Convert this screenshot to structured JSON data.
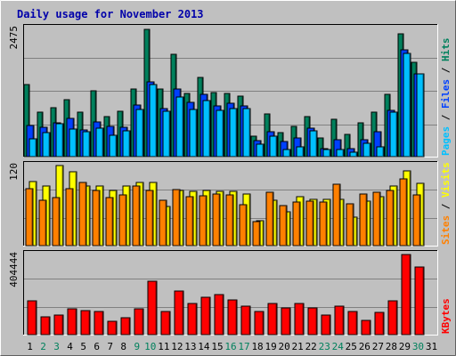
{
  "title": "Daily usage for November 2013",
  "colors": {
    "background": "#c0c0c0",
    "plot": "#c0c0c0",
    "title": "#0000aa",
    "hits": "#00805c",
    "files": "#0040ff",
    "pages": "#00c0ff",
    "visits": "#ffff00",
    "sites": "#ff8000",
    "kbytes": "#ff0000",
    "weekend_label": "#00805c",
    "weekday_label": "#000000"
  },
  "chart_data": [
    {
      "type": "bar",
      "name": "hits-files-pages",
      "scale_label": "2475",
      "ylim": [
        0,
        2475
      ],
      "legend": [
        {
          "text": "Pages",
          "color": "#00c0ff"
        },
        {
          "text": "Files",
          "color": "#0040ff"
        },
        {
          "text": "Hits",
          "color": "#00805c"
        }
      ],
      "categories": [
        "1",
        "2",
        "3",
        "4",
        "5",
        "6",
        "7",
        "8",
        "9",
        "10",
        "11",
        "12",
        "13",
        "14",
        "15",
        "16",
        "17",
        "18",
        "19",
        "20",
        "21",
        "22",
        "23",
        "24",
        "25",
        "26",
        "27",
        "28",
        "29",
        "30",
        "31"
      ],
      "series": [
        {
          "name": "Hits",
          "values": [
            1380,
            840,
            940,
            1090,
            840,
            1250,
            770,
            860,
            1290,
            2420,
            1280,
            1950,
            1210,
            1510,
            1220,
            1200,
            1160,
            390,
            820,
            450,
            580,
            770,
            360,
            720,
            420,
            650,
            840,
            1190,
            2340,
            1800,
            0
          ]
        },
        {
          "name": "Files",
          "values": [
            590,
            560,
            640,
            730,
            510,
            660,
            570,
            560,
            980,
            1420,
            920,
            1280,
            1030,
            1190,
            960,
            1020,
            970,
            300,
            480,
            290,
            360,
            550,
            160,
            320,
            160,
            330,
            480,
            880,
            2040,
            1580,
            0
          ]
        },
        {
          "name": "Pages",
          "values": [
            340,
            450,
            620,
            530,
            470,
            550,
            410,
            500,
            900,
            1370,
            860,
            1140,
            890,
            1070,
            880,
            910,
            910,
            230,
            390,
            140,
            180,
            490,
            130,
            130,
            80,
            260,
            180,
            850,
            1970,
            1580,
            0
          ]
        }
      ]
    },
    {
      "type": "bar",
      "name": "visits-sites",
      "scale_label": "120",
      "ylim": [
        0,
        120
      ],
      "legend": [
        {
          "text": "Sites",
          "color": "#ff8000"
        },
        {
          "text": "Visits",
          "color": "#ffff00"
        }
      ],
      "categories": [
        "1",
        "2",
        "3",
        "4",
        "5",
        "6",
        "7",
        "8",
        "9",
        "10",
        "11",
        "12",
        "13",
        "14",
        "15",
        "16",
        "17",
        "18",
        "19",
        "20",
        "21",
        "22",
        "23",
        "24",
        "25",
        "26",
        "27",
        "28",
        "29",
        "30",
        "31"
      ],
      "series": [
        {
          "name": "Visits",
          "values": [
            94,
            88,
            117,
            108,
            88,
            88,
            81,
            88,
            92,
            92,
            58,
            81,
            79,
            81,
            79,
            79,
            76,
            37,
            67,
            49,
            72,
            68,
            68,
            68,
            42,
            65,
            72,
            88,
            110,
            91,
            0
          ]
        },
        {
          "name": "Sites",
          "values": [
            84,
            66,
            71,
            83,
            92,
            81,
            70,
            74,
            87,
            81,
            66,
            82,
            72,
            73,
            76,
            74,
            60,
            35,
            78,
            59,
            64,
            65,
            64,
            90,
            61,
            76,
            78,
            81,
            98,
            74,
            0
          ]
        }
      ]
    },
    {
      "type": "bar",
      "name": "kbytes",
      "scale_label": "404444",
      "ylim": [
        0,
        404444
      ],
      "legend": [
        {
          "text": "KBytes",
          "color": "#ff0000"
        }
      ],
      "categories": [
        "1",
        "2",
        "3",
        "4",
        "5",
        "6",
        "7",
        "8",
        "9",
        "10",
        "11",
        "12",
        "13",
        "14",
        "15",
        "16",
        "17",
        "18",
        "19",
        "20",
        "21",
        "22",
        "23",
        "24",
        "25",
        "26",
        "27",
        "28",
        "29",
        "30",
        "31"
      ],
      "series": [
        {
          "name": "KBytes",
          "values": [
            165000,
            90000,
            95000,
            128000,
            118000,
            116000,
            68000,
            85000,
            128000,
            263000,
            116000,
            215000,
            152000,
            183000,
            200000,
            172000,
            140000,
            115000,
            155000,
            132000,
            155000,
            132000,
            95000,
            140000,
            115000,
            70000,
            110000,
            165000,
            396000,
            335000,
            0
          ]
        }
      ]
    }
  ]
}
